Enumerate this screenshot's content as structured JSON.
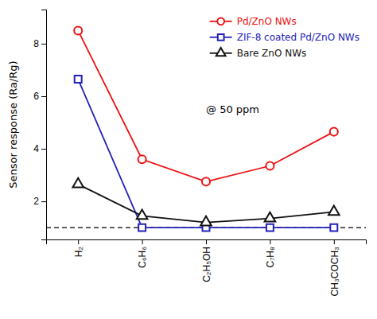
{
  "chart_data": {
    "type": "line",
    "categories": [
      "H₂",
      "C₆H₆",
      "C₂H₅OH",
      "C₇H₈",
      "CH₃COCH₃"
    ],
    "series": [
      {
        "name": "Pd/ZnO NWs",
        "color": "#ee1111",
        "marker": "circle",
        "values": [
          8.5,
          3.6,
          2.75,
          3.35,
          4.65
        ]
      },
      {
        "name": "ZIF-8 coated Pd/ZnO NWs",
        "color": "#2222bb",
        "marker": "square",
        "values": [
          6.65,
          1.0,
          1.0,
          1.0,
          1.0
        ]
      },
      {
        "name": "Bare ZnO NWs",
        "color": "#111111",
        "marker": "triangle",
        "values": [
          2.65,
          1.45,
          1.2,
          1.35,
          1.6
        ]
      }
    ],
    "y_label": "Sensor response (Ra/Rg)",
    "annotations": [
      "@ 50 ppm"
    ],
    "reference_line": {
      "value": 1.0,
      "line_style": "dashed"
    },
    "ylim": [
      0.55,
      9.3
    ],
    "yticks": [
      2,
      4,
      6,
      8
    ],
    "grid": false,
    "legend": "upper right"
  }
}
